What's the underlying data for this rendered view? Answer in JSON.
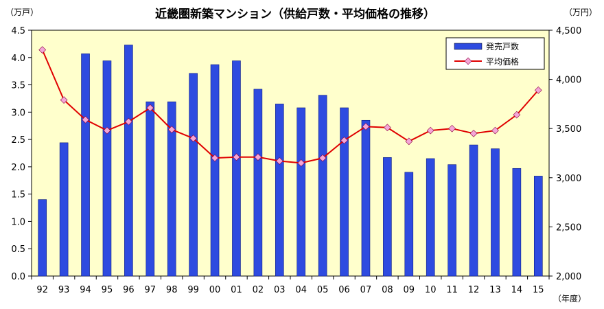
{
  "chart_data": {
    "type": "bar+line",
    "title": "近畿圏新築マンション（供給戸数・平均価格の推移）",
    "left_unit": "（万戸）",
    "right_unit": "（万円）",
    "x_unit": "（年度）",
    "categories": [
      "92",
      "93",
      "94",
      "95",
      "96",
      "97",
      "98",
      "99",
      "00",
      "01",
      "02",
      "03",
      "04",
      "05",
      "06",
      "07",
      "08",
      "09",
      "10",
      "11",
      "12",
      "13",
      "14",
      "15"
    ],
    "left_ticks": [
      "0.0",
      "0.5",
      "1.0",
      "1.5",
      "2.0",
      "2.5",
      "3.0",
      "3.5",
      "4.0",
      "4.5"
    ],
    "right_ticks": [
      "2,000",
      "2,500",
      "3,000",
      "3,500",
      "4,000",
      "4,500"
    ],
    "ylim_left": [
      0,
      4.5
    ],
    "ylim_right": [
      2000,
      4500
    ],
    "grid": false,
    "legend_position": "top-right",
    "series": [
      {
        "name": "発売戸数",
        "type": "bar",
        "axis": "left",
        "color": "#2E4BE0",
        "values": [
          1.4,
          2.44,
          4.07,
          3.94,
          4.23,
          3.19,
          3.19,
          3.71,
          3.87,
          3.94,
          3.42,
          3.15,
          3.08,
          3.31,
          3.08,
          2.85,
          2.17,
          1.9,
          2.15,
          2.04,
          2.4,
          2.33,
          1.97,
          1.83
        ]
      },
      {
        "name": "平均価格",
        "type": "line",
        "axis": "right",
        "color": "#E00000",
        "marker_color": "#F4A6D7",
        "values": [
          4300,
          3790,
          3590,
          3480,
          3570,
          3710,
          3490,
          3400,
          3200,
          3210,
          3210,
          3170,
          3150,
          3200,
          3380,
          3520,
          3510,
          3370,
          3480,
          3500,
          3450,
          3480,
          3640,
          3890
        ]
      }
    ]
  }
}
